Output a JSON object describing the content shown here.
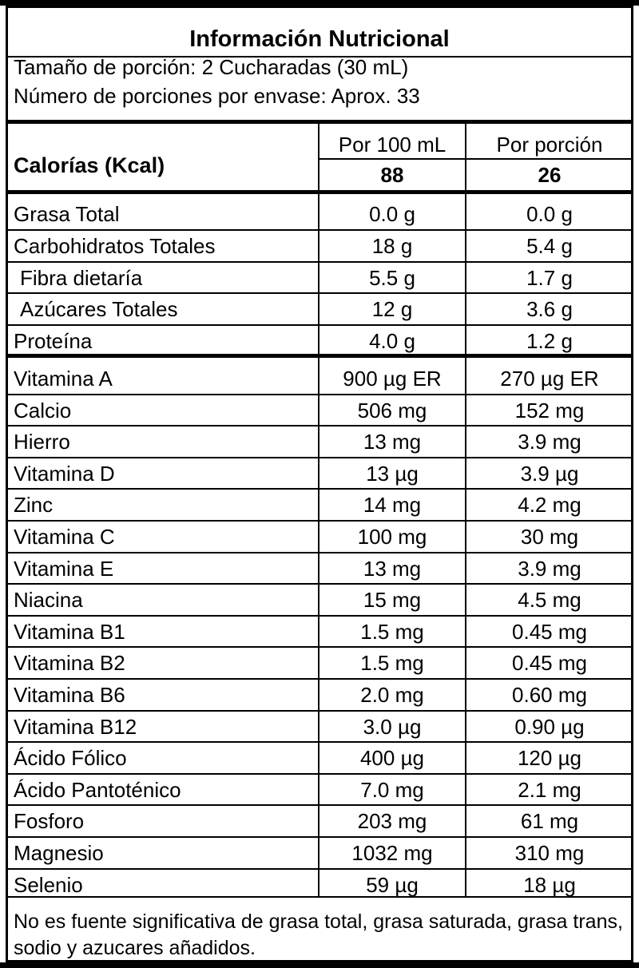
{
  "title": "Información  Nutricional",
  "serving_size": "Tamaño de porción: 2 Cucharadas (30 mL)",
  "servings_per_container": "Número de porciones por envase: Aprox. 33",
  "calories": {
    "label": "Calorías (Kcal)",
    "col1_header": "Por 100 mL",
    "col2_header": "Por porción",
    "col1_value": "88",
    "col2_value": "26"
  },
  "macros": [
    {
      "name": "Grasa Total",
      "per100": "0.0 g",
      "perServing": "0.0 g"
    },
    {
      "name": "Carbohidratos Totales",
      "per100": "18 g",
      "perServing": "5.4 g"
    },
    {
      "name": "Fibra dietaría",
      "per100": "5.5 g",
      "perServing": "1.7 g"
    },
    {
      "name": "Azúcares Totales",
      "per100": "12 g",
      "perServing": "3.6 g"
    },
    {
      "name": "Proteína",
      "per100": "4.0 g",
      "perServing": "1.2 g"
    }
  ],
  "micros": [
    {
      "name": "Vitamina A",
      "per100": "900 µg ER",
      "perServing": "270 µg ER"
    },
    {
      "name": "Calcio",
      "per100": "506 mg",
      "perServing": "152 mg"
    },
    {
      "name": "Hierro",
      "per100": "13 mg",
      "perServing": "3.9 mg"
    },
    {
      "name": "Vitamina D",
      "per100": "13 µg",
      "perServing": "3.9 µg"
    },
    {
      "name": "Zinc",
      "per100": "14 mg",
      "perServing": "4.2 mg"
    },
    {
      "name": "Vitamina C",
      "per100": "100 mg",
      "perServing": "30 mg"
    },
    {
      "name": "Vitamina E",
      "per100": "13 mg",
      "perServing": "3.9 mg"
    },
    {
      "name": "Niacina",
      "per100": "15 mg",
      "perServing": "4.5 mg"
    },
    {
      "name": "Vitamina B1",
      "per100": "1.5 mg",
      "perServing": "0.45 mg"
    },
    {
      "name": "Vitamina B2",
      "per100": "1.5 mg",
      "perServing": "0.45 mg"
    },
    {
      "name": "Vitamina B6",
      "per100": "2.0 mg",
      "perServing": "0.60 mg"
    },
    {
      "name": "Vitamina B12",
      "per100": "3.0 µg",
      "perServing": "0.90 µg"
    },
    {
      "name": "Ácido Fólico",
      "per100": "400 µg",
      "perServing": "120 µg"
    },
    {
      "name": "Ácido Pantoténico",
      "per100": "7.0 mg",
      "perServing": "2.1 mg"
    },
    {
      "name": "Fosforo",
      "per100": "203 mg",
      "perServing": "61 mg"
    },
    {
      "name": "Magnesio",
      "per100": "1032 mg",
      "perServing": "310 mg"
    },
    {
      "name": "Selenio",
      "per100": "59 µg",
      "perServing": "18 µg"
    }
  ],
  "footnote": "No es fuente significativa de grasa total, grasa saturada, grasa trans, sodio y azucares añadidos."
}
